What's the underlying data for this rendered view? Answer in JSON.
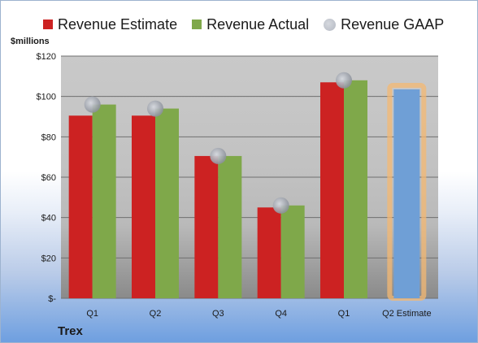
{
  "company": "Trex",
  "chart_data": {
    "type": "bar",
    "ylabel": "$millions",
    "ylim": [
      0,
      120
    ],
    "y_ticks": [
      {
        "value": 0,
        "label": "$-"
      },
      {
        "value": 20,
        "label": "$20"
      },
      {
        "value": 40,
        "label": "$40"
      },
      {
        "value": 60,
        "label": "$60"
      },
      {
        "value": 80,
        "label": "$80"
      },
      {
        "value": 100,
        "label": "$100"
      },
      {
        "value": 120,
        "label": "$120"
      }
    ],
    "categories": [
      "Q1",
      "Q2",
      "Q3",
      "Q4",
      "Q1",
      "Q2 Estimate"
    ],
    "series": [
      {
        "name": "Revenue Estimate",
        "kind": "bar",
        "color": "#cc2222",
        "values": [
          90.5,
          90.5,
          70.5,
          45,
          107,
          null
        ]
      },
      {
        "name": "Revenue Actual",
        "kind": "bar",
        "color": "#7fa84a",
        "values": [
          96,
          94,
          70.5,
          46,
          108,
          null
        ]
      },
      {
        "name": "Revenue GAAP",
        "kind": "marker",
        "color": "#b3b8c2",
        "values": [
          96,
          94,
          70.5,
          46,
          108,
          null
        ]
      }
    ],
    "estimate_bar": {
      "category_index": 5,
      "value": 103.5,
      "color": "#6f9fd6",
      "highlight": "#f4b872"
    },
    "legend_position": "top",
    "grid": true
  }
}
